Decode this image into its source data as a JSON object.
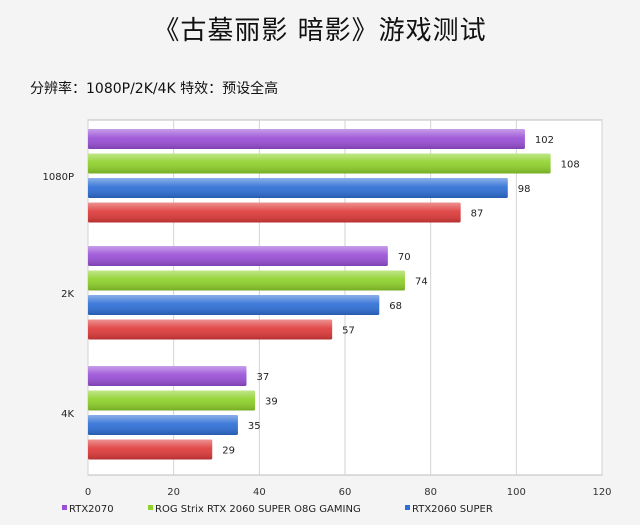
{
  "title": "《古墓丽影 暗影》游戏测试",
  "subtitle": "分辨率：1080P/2K/4K 特效：预设全高",
  "chart_data": {
    "type": "bar",
    "orientation": "horizontal",
    "categories": [
      "1080P",
      "2K",
      "4K"
    ],
    "series": [
      {
        "name": "RTX2070",
        "color": "#9a4fd6",
        "values": [
          102,
          70,
          37
        ]
      },
      {
        "name": "ROG Strix RTX 2060 SUPER O8G GAMING",
        "color": "#8ed12a",
        "values": [
          108,
          74,
          39
        ]
      },
      {
        "name": "RTX2060 SUPER",
        "color": "#2e6fd6",
        "values": [
          98,
          68,
          35
        ]
      },
      {
        "name": "",
        "color": "#de3a3a",
        "values": [
          87,
          57,
          29
        ]
      }
    ],
    "x_ticks": [
      "0",
      "20",
      "40",
      "60",
      "80",
      "100",
      "120"
    ],
    "xlim": [
      0,
      120
    ],
    "grid": true,
    "legend": "bottom"
  }
}
